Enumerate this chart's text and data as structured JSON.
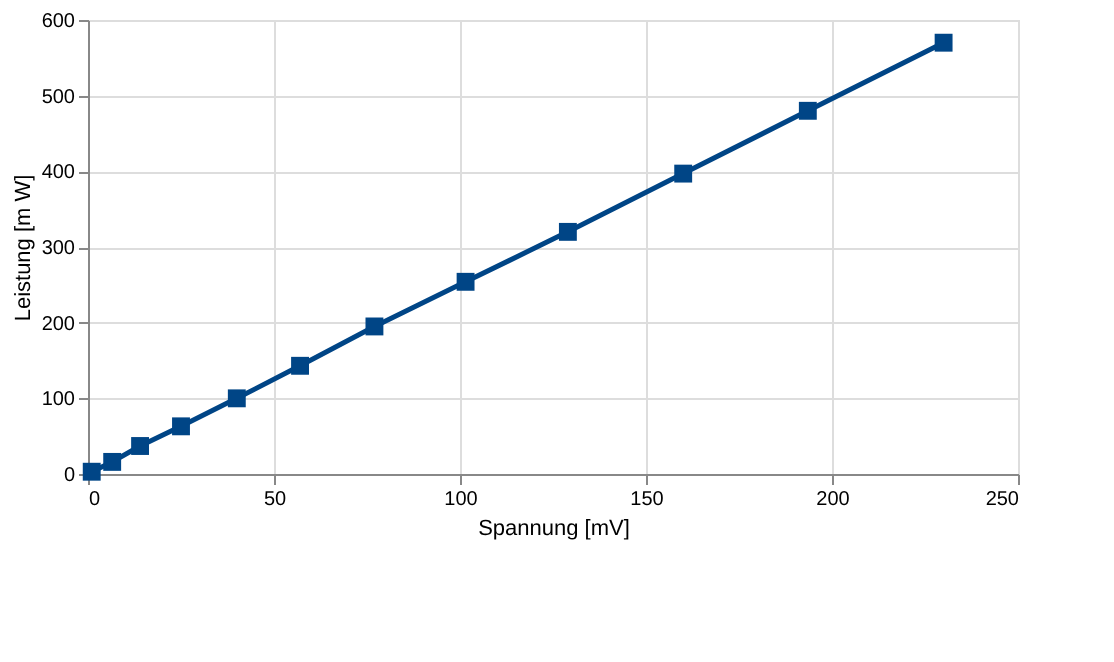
{
  "chart_data": {
    "type": "line",
    "xlabel": "Spannung [mV]",
    "ylabel": "Leistung [m W]",
    "x": [
      1,
      6.5,
      14,
      25,
      40,
      57,
      77,
      101.5,
      129,
      160,
      193.5,
      230
    ],
    "series": [
      {
        "color": "#004586",
        "values": [
          3,
          16,
          37,
          63,
          100,
          143,
          195,
          254,
          320,
          397,
          480,
          570
        ]
      }
    ],
    "xlim": [
      0,
      250
    ],
    "xticks": [
      0,
      50,
      100,
      150,
      200,
      250
    ],
    "ylim": [
      0,
      600
    ],
    "yticks": [
      0,
      100,
      200,
      300,
      400,
      500,
      600
    ],
    "grid": true,
    "marker": "square",
    "line_style": "solid"
  }
}
